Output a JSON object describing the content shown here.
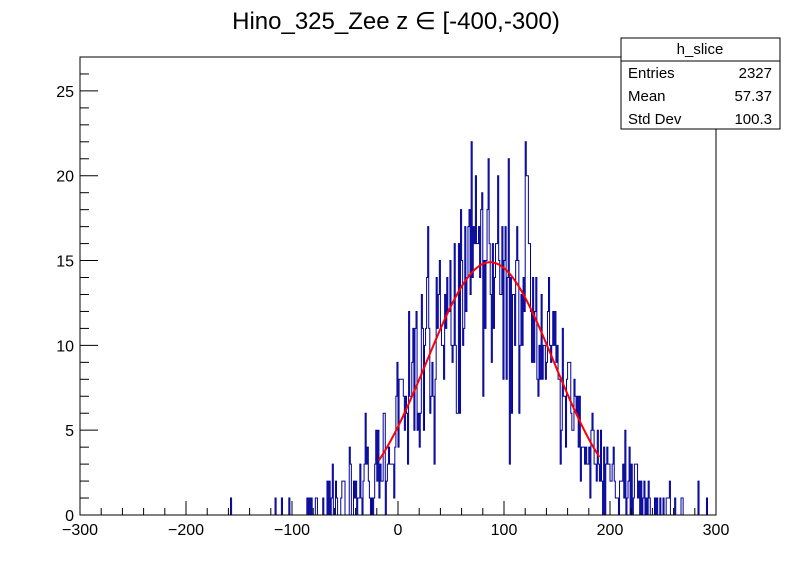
{
  "chart_data": {
    "type": "histogram",
    "title": "Hino_325_Zee z  ∈ [-400,-300)",
    "xlim": [
      -300,
      300
    ],
    "ylim": [
      0,
      27
    ],
    "x_ticks": [
      "−300",
      "−200",
      "−100",
      "0",
      "100",
      "200",
      "300"
    ],
    "x_tick_values": [
      -300,
      -200,
      -100,
      0,
      100,
      200,
      300
    ],
    "y_ticks": [
      "0",
      "5",
      "10",
      "15",
      "20",
      "25"
    ],
    "y_tick_values": [
      0,
      5,
      10,
      15,
      20,
      25
    ],
    "bins": 600,
    "grid": false,
    "histogram_color": "#000099",
    "fit_color": "#ff0000",
    "fit": {
      "type": "gaussian",
      "amplitude": 14.9,
      "mean": 87,
      "sigma": 60,
      "x_range": [
        -18,
        190
      ]
    },
    "stats_box": {
      "title": "h_slice",
      "entries_label": "Entries",
      "entries_value": "2327",
      "mean_label": "Mean",
      "mean_value": "57.37",
      "stddev_label": "Std Dev",
      "stddev_value": "100.3"
    },
    "counts_seed": 325
  }
}
